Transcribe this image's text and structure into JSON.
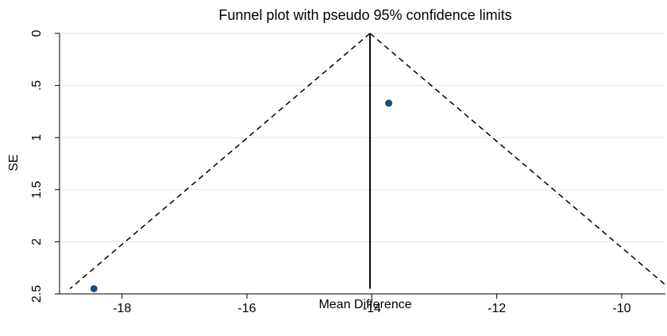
{
  "chart_data": {
    "type": "scatter",
    "title": "Funnel plot with pseudo 95% confidence limits",
    "xlabel": "Mean Difference",
    "ylabel": "SE",
    "xlim": [
      -19.0,
      -9.3
    ],
    "ylim": [
      2.5,
      0
    ],
    "y_reversed": true,
    "x_ticks": [
      -18,
      -16,
      -14,
      -12,
      -10
    ],
    "x_tick_labels": [
      "-18",
      "-16",
      "-14",
      "-12",
      "-10"
    ],
    "y_ticks": [
      0,
      0.5,
      1,
      1.5,
      2,
      2.5
    ],
    "y_tick_labels": [
      "0",
      ".5",
      "1",
      "1.5",
      "2",
      "2.5"
    ],
    "grid": true,
    "pooled_estimate": -14.03,
    "confidence_level": 0.95,
    "se_max": 2.45,
    "points": [
      {
        "x": -18.45,
        "y": 2.45
      },
      {
        "x": -13.73,
        "y": 0.67
      }
    ],
    "colors": {
      "point": "#1f4e79",
      "grid": "#e6e6e6",
      "line": "#000000"
    }
  }
}
